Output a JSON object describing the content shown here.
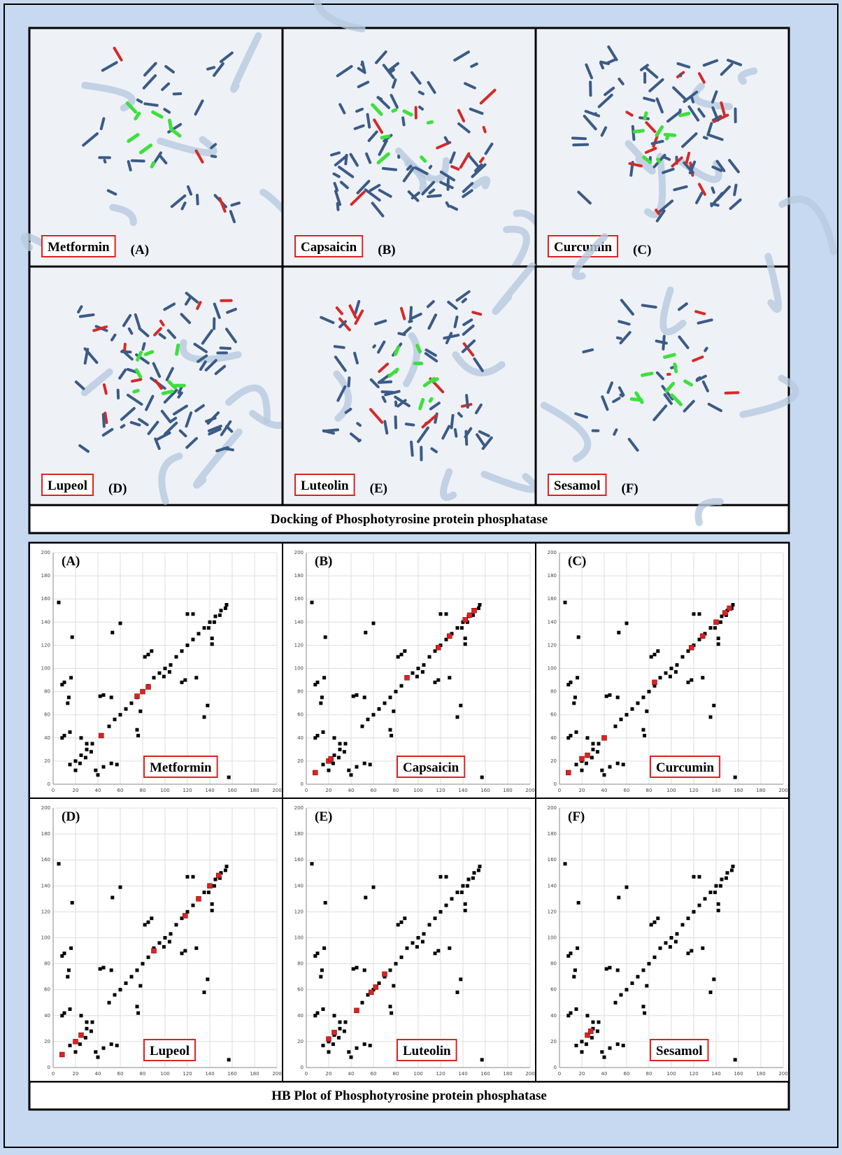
{
  "docking": {
    "caption": "Docking of Phosphotyrosine protein phosphatase",
    "panels": [
      {
        "name": "Metformin",
        "letter": "(A)"
      },
      {
        "name": "Capsaicin",
        "letter": "(B)"
      },
      {
        "name": "Curcumin",
        "letter": "(C)"
      },
      {
        "name": "Lupeol",
        "letter": "(D)"
      },
      {
        "name": "Luteolin",
        "letter": "(E)"
      },
      {
        "name": "Sesamol",
        "letter": "(F)"
      }
    ]
  },
  "hb_plots": {
    "caption": "HB Plot of Phosphotyrosine protein phosphatase",
    "xlim": [
      0,
      200
    ],
    "ylim": [
      0,
      200
    ],
    "ticks": [
      0,
      20,
      40,
      60,
      80,
      100,
      120,
      140,
      160,
      180,
      200
    ],
    "contacts": {
      "x": [
        20,
        25,
        30,
        35,
        50,
        55,
        60,
        65,
        70,
        75,
        80,
        85,
        90,
        95,
        100,
        105,
        110,
        115,
        120,
        125,
        130,
        135,
        140,
        145,
        150,
        155,
        24,
        29,
        34,
        99,
        104,
        139,
        144,
        149,
        154,
        5,
        8,
        10,
        16,
        17,
        8,
        10,
        15,
        13,
        14,
        53,
        60,
        42,
        45,
        52,
        82,
        85,
        88,
        78,
        75,
        76,
        38,
        40,
        45,
        52,
        57,
        120,
        125,
        118,
        115,
        128,
        142,
        142,
        135,
        138,
        157,
        15,
        20,
        25,
        30
      ],
      "y": [
        20,
        25,
        30,
        35,
        50,
        56,
        60,
        65,
        70,
        75,
        80,
        85,
        92,
        96,
        100,
        103,
        110,
        115,
        120,
        125,
        130,
        135,
        140,
        145,
        150,
        155,
        18,
        23,
        28,
        93,
        97,
        135,
        140,
        146,
        152,
        157,
        86,
        88,
        92,
        127,
        40,
        42,
        45,
        70,
        75,
        131,
        139,
        76,
        77,
        75,
        110,
        112,
        115,
        63,
        47,
        42,
        12,
        8,
        15,
        18,
        17,
        147,
        147,
        90,
        88,
        92,
        121,
        126,
        58,
        68,
        6,
        17,
        12,
        40,
        35
      ]
    },
    "panels": [
      {
        "letter": "(A)",
        "name": "Metformin",
        "ligand_contacts": {
          "x": [
            43,
            75,
            80,
            85
          ],
          "y": [
            42,
            76,
            80,
            84
          ]
        }
      },
      {
        "letter": "(B)",
        "name": "Capsaicin",
        "ligand_contacts": {
          "x": [
            8,
            20,
            22,
            90,
            118,
            128,
            142,
            146,
            150
          ],
          "y": [
            10,
            20,
            22,
            92,
            118,
            128,
            142,
            146,
            150
          ]
        }
      },
      {
        "letter": "(C)",
        "name": "Curcumin",
        "ligand_contacts": {
          "x": [
            8,
            20,
            25,
            40,
            85,
            118,
            128,
            140,
            148,
            152
          ],
          "y": [
            10,
            22,
            25,
            40,
            88,
            118,
            128,
            140,
            148,
            152
          ]
        }
      },
      {
        "letter": "(D)",
        "name": "Lupeol",
        "ligand_contacts": {
          "x": [
            8,
            20,
            25,
            90,
            118,
            130,
            140,
            148
          ],
          "y": [
            10,
            20,
            25,
            90,
            117,
            130,
            140,
            148
          ]
        }
      },
      {
        "letter": "(E)",
        "name": "Luteolin",
        "ligand_contacts": {
          "x": [
            20,
            25,
            45,
            58,
            62,
            70
          ],
          "y": [
            22,
            27,
            44,
            58,
            62,
            72
          ]
        }
      },
      {
        "letter": "(F)",
        "name": "Sesamol",
        "ligand_contacts": {
          "x": [
            25,
            28
          ],
          "y": [
            25,
            28
          ]
        }
      }
    ]
  }
}
